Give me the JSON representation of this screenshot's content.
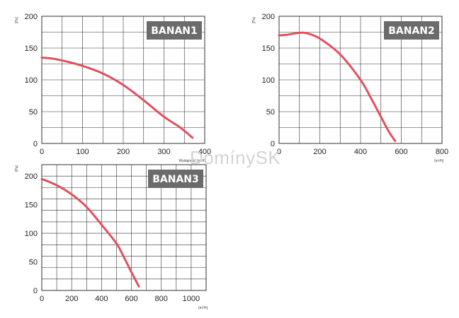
{
  "watermark": "DomínySK",
  "colors": {
    "curve": "#e05060",
    "badge": "#6b6b6b",
    "grid": "#333333"
  },
  "chart_data": [
    {
      "type": "line",
      "title": "BANAN1",
      "xlabel": "Wydajność [m³/h]",
      "ylabel": "[Pa]",
      "xlim": [
        0,
        400
      ],
      "ylim": [
        0,
        200
      ],
      "xticks": [
        "0",
        "100",
        "200",
        "300",
        "400"
      ],
      "yticks": [
        "0",
        "50",
        "100",
        "150",
        "200"
      ],
      "series": [
        {
          "x": [
            0,
            30,
            60,
            100,
            150,
            200,
            250,
            300,
            340,
            370
          ],
          "y": [
            135,
            133,
            129,
            122,
            110,
            92,
            68,
            42,
            25,
            9
          ]
        }
      ]
    },
    {
      "type": "line",
      "title": "BANAN2",
      "xlabel": "[m³/h]",
      "ylabel": "[Pa]",
      "xlim": [
        0,
        800
      ],
      "ylim": [
        0,
        200
      ],
      "xticks": [
        "0",
        "200",
        "400",
        "600",
        "800"
      ],
      "yticks": [
        "0",
        "50",
        "100",
        "150",
        "200"
      ],
      "series": [
        {
          "x": [
            0,
            40,
            100,
            140,
            200,
            300,
            400,
            450,
            500,
            540,
            570
          ],
          "y": [
            170,
            171,
            174,
            173,
            165,
            140,
            100,
            72,
            42,
            18,
            4
          ]
        }
      ]
    },
    {
      "type": "line",
      "title": "BANAN3",
      "xlabel": "[m³/h]",
      "ylabel": "[Pa]",
      "xlim": [
        0,
        1100
      ],
      "ylim": [
        0,
        220
      ],
      "xticks": [
        "0",
        "200",
        "400",
        "600",
        "800",
        "1000"
      ],
      "yticks": [
        "0",
        "50",
        "100",
        "150",
        "200"
      ],
      "series": [
        {
          "x": [
            0,
            100,
            200,
            300,
            400,
            500,
            550,
            600,
            650
          ],
          "y": [
            195,
            184,
            168,
            146,
            115,
            82,
            58,
            32,
            7
          ]
        }
      ]
    }
  ]
}
